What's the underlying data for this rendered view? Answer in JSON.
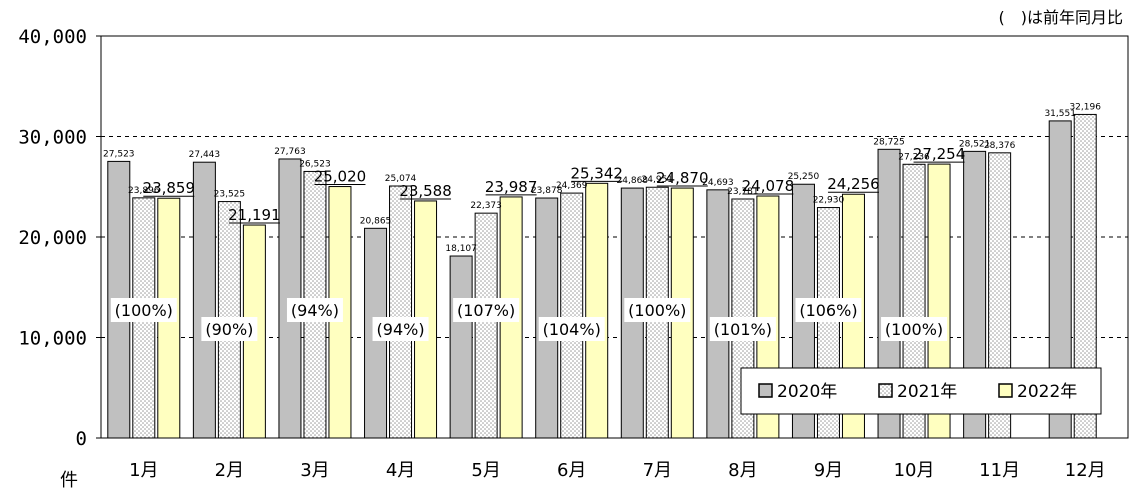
{
  "chart_data": {
    "type": "bar",
    "title": "",
    "note": "(　)は前年同月比",
    "ylabel": "件",
    "xlabel": "",
    "ylim": [
      0,
      40000
    ],
    "y_ticks": [
      "0",
      "10,000",
      "20,000",
      "30,000",
      "40,000"
    ],
    "grid": "dashed horizontal at 10,000 / 20,000 / 30,000",
    "legend_position": "bottom-right inside plot",
    "categories": [
      "1月",
      "2月",
      "3月",
      "4月",
      "5月",
      "6月",
      "7月",
      "8月",
      "9月",
      "10月",
      "11月",
      "12月"
    ],
    "series": [
      {
        "name": "2020年",
        "color": "#c0c0c0",
        "pattern": "solid-gray",
        "values": [
          27523,
          27443,
          27763,
          20865,
          18107,
          23878,
          24868,
          24693,
          25250,
          28725,
          28521,
          31551
        ],
        "labels": [
          "27,523",
          "27,443",
          "27,763",
          "20,865",
          "18,107",
          "23,878",
          "24,868",
          "24,693",
          "25,250",
          "28,725",
          "28,521",
          "31,551"
        ]
      },
      {
        "name": "2021年",
        "color": "#ffffff",
        "pattern": "dotted",
        "values": [
          23896,
          23525,
          26523,
          25074,
          22373,
          24369,
          24951,
          23781,
          22930,
          27236,
          28376,
          32196
        ],
        "labels": [
          "23,896",
          "23,525",
          "26,523",
          "25,074",
          "22,373",
          "24,369",
          "24,951",
          "23,781",
          "22,930",
          "27,236",
          "28,376",
          "32,196"
        ]
      },
      {
        "name": "2022年",
        "color": "#ffffc0",
        "pattern": "solid-yellow",
        "values": [
          23859,
          21191,
          25020,
          23588,
          23987,
          25342,
          24870,
          24078,
          24256,
          27254,
          null,
          null
        ],
        "labels": [
          "23,859",
          "21,191",
          "25,020",
          "23,588",
          "23,987",
          "25,342",
          "24,870",
          "24,078",
          "24,256",
          "27,254",
          "",
          ""
        ]
      }
    ],
    "yoy_ratios": [
      "(100%)",
      "(90%)",
      "(94%)",
      "(94%)",
      "(107%)",
      "(104%)",
      "(100%)",
      "(101%)",
      "(106%)",
      "(100%)",
      "",
      ""
    ]
  }
}
